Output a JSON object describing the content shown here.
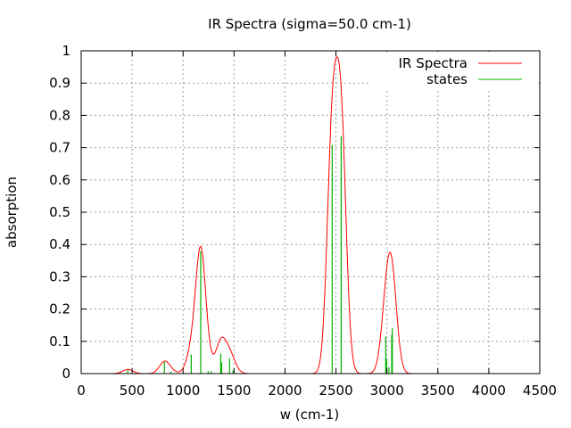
{
  "chart_data": {
    "type": "line",
    "title": "IR Spectra (sigma=50.0 cm-1)",
    "xlabel": "w (cm-1)",
    "ylabel": "absorption",
    "xlim": [
      0,
      4500
    ],
    "ylim": [
      0,
      1
    ],
    "xticks": [
      "0",
      "500",
      "1000",
      "1500",
      "2000",
      "2500",
      "3000",
      "3500",
      "4000",
      "4500"
    ],
    "yticks": [
      "0",
      "0.1",
      "0.2",
      "0.3",
      "0.4",
      "0.5",
      "0.6",
      "0.7",
      "0.8",
      "0.9",
      "1"
    ],
    "grid": true,
    "legend_position": "top-right",
    "sigma": 50.0,
    "curve_range": [
      100,
      3300
    ],
    "series": [
      {
        "name": "IR Spectra",
        "kind": "gaussian-broadened line",
        "color": "#ff0000"
      },
      {
        "name": "states",
        "kind": "impulses",
        "color": "#00b000",
        "x": [
          458,
          817,
          881,
          1080,
          1173,
          1246,
          1275,
          1369,
          1378,
          1456,
          1490,
          2463,
          2551,
          2988,
          2997,
          3020,
          3047,
          3053
        ],
        "y": [
          0.013,
          0.036,
          0.006,
          0.059,
          0.38,
          0.008,
          0.007,
          0.062,
          0.035,
          0.048,
          0.01,
          0.709,
          0.735,
          0.114,
          0.046,
          0.02,
          0.12,
          0.14
        ]
      }
    ]
  }
}
